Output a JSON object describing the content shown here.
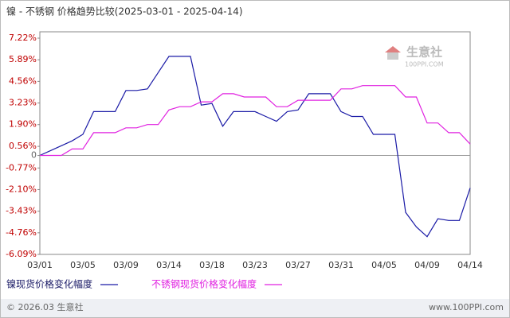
{
  "chart_data": {
    "type": "line",
    "title": "镍 - 不锈钢 价格趋势比较(2025-03-01 - 2025-04-14)",
    "categories": [
      "03/01",
      null,
      null,
      null,
      "03/05",
      null,
      null,
      null,
      "03/09",
      null,
      null,
      null,
      "03/14",
      null,
      null,
      null,
      "03/18",
      null,
      null,
      null,
      "03/23",
      null,
      null,
      null,
      "03/27",
      null,
      null,
      null,
      "03/31",
      null,
      null,
      null,
      "04/05",
      null,
      null,
      null,
      "04/09",
      null,
      null,
      null,
      "04/14"
    ],
    "series": [
      {
        "name": "镍现货价格变化幅度",
        "color": "#1a1aa6",
        "values": [
          0,
          0.3,
          0.6,
          0.9,
          1.3,
          2.7,
          2.7,
          2.7,
          4.0,
          4.0,
          4.1,
          5.1,
          6.1,
          6.1,
          6.1,
          3.1,
          3.2,
          1.8,
          2.7,
          2.7,
          2.7,
          2.4,
          2.1,
          2.7,
          2.8,
          3.8,
          3.8,
          3.8,
          2.7,
          2.4,
          2.4,
          1.3,
          1.3,
          1.3,
          -3.5,
          -4.4,
          -5.0,
          -3.9,
          -4.0,
          -4.0,
          -2.0
        ]
      },
      {
        "name": "不锈钢现货价格变化幅度",
        "color": "#e020e0",
        "values": [
          0,
          0,
          0,
          0.4,
          0.4,
          1.4,
          1.4,
          1.4,
          1.7,
          1.7,
          1.9,
          1.9,
          2.8,
          3.0,
          3.0,
          3.3,
          3.3,
          3.8,
          3.8,
          3.6,
          3.6,
          3.6,
          3.0,
          3.0,
          3.4,
          3.4,
          3.4,
          3.4,
          4.1,
          4.1,
          4.3,
          4.3,
          4.3,
          4.3,
          3.6,
          3.6,
          2.0,
          2.0,
          1.4,
          1.4,
          0.7
        ]
      }
    ],
    "ylim": [
      -6.09,
      7.22
    ],
    "yticks": [
      {
        "value": 7.22,
        "label": "7.22%"
      },
      {
        "value": 5.89,
        "label": "5.89%"
      },
      {
        "value": 4.56,
        "label": "4.56%"
      },
      {
        "value": 3.23,
        "label": "3.23%"
      },
      {
        "value": 1.9,
        "label": "1.90%"
      },
      {
        "value": 0.56,
        "label": "0.56%"
      },
      0,
      {
        "value": -0.77,
        "label": "-0.77%"
      },
      {
        "value": -2.1,
        "label": "-2.10%"
      },
      {
        "value": -3.43,
        "label": "-3.43%"
      },
      {
        "value": -4.76,
        "label": "-4.76%"
      },
      {
        "value": -6.09,
        "label": "-6.09%"
      }
    ],
    "grid": false,
    "watermark": [
      "生意社",
      "100PPI.COM"
    ],
    "footer": {
      "left": "© 2026.03 生意社",
      "right": "www.100PPI.com"
    }
  }
}
